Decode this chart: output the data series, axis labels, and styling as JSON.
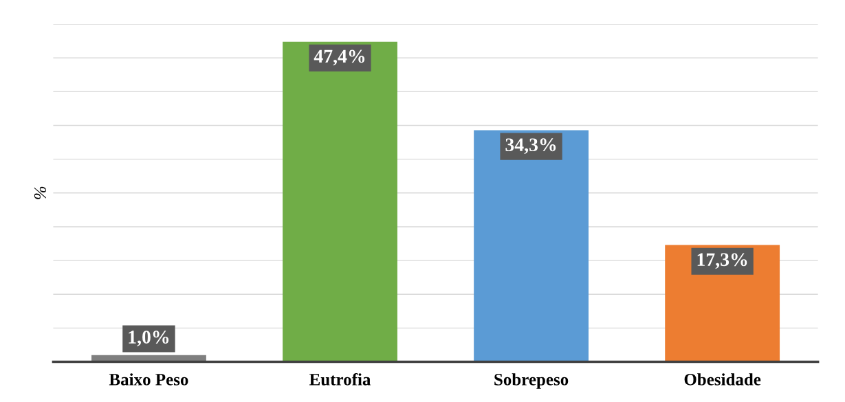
{
  "chart_data": {
    "type": "bar",
    "ylabel": "%",
    "categories": [
      "Baixo Peso",
      "Eutrofia",
      "Sobrepeso",
      "Obesidade"
    ],
    "values": [
      1.0,
      47.4,
      34.3,
      17.3
    ],
    "colors": [
      "#7f7f7f",
      "#70ad47",
      "#5b9bd5",
      "#ed7d31"
    ],
    "value_labels": [
      "1,0%",
      "47,4%",
      "34,3%",
      "17,3%"
    ],
    "ylim": [
      0,
      50
    ],
    "yticks": [
      {
        "value": 0,
        "label": null
      },
      {
        "value": 5,
        "label": null
      },
      {
        "value": 10,
        "label": null
      },
      {
        "value": 15,
        "label": null
      },
      {
        "value": 20,
        "label": null
      },
      {
        "value": 25,
        "label": null
      },
      {
        "value": 30,
        "label": null
      },
      {
        "value": 35,
        "label": null
      },
      {
        "value": 40,
        "label": null
      },
      {
        "value": 45,
        "label": null
      },
      {
        "value": 50,
        "label": null
      }
    ],
    "grid": "y",
    "tick_labels": "x"
  }
}
